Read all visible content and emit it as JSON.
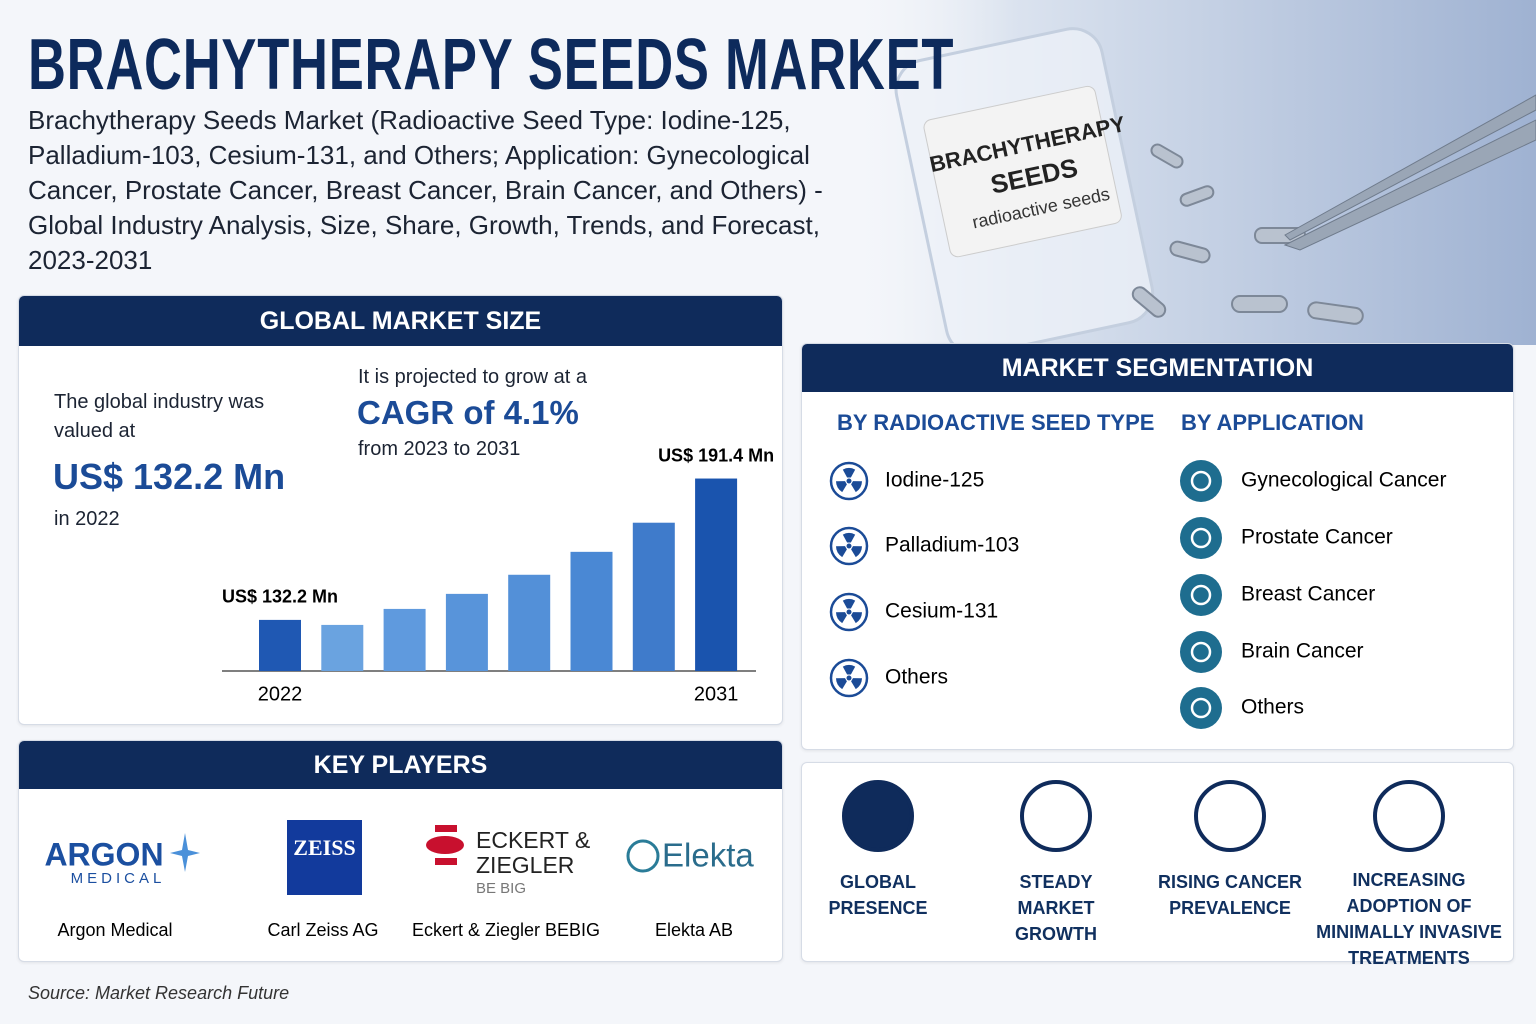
{
  "title": "BRACHYTHERAPY SEEDS MARKET",
  "subtitle": "Brachytherapy Seeds Market (Radioactive Seed Type: Iodine-125, Palladium-103, Cesium-131, and Others; Application: Gynecological Cancer, Prostate Cancer, Breast Cancer, Brain Cancer, and Others) - Global Industry Analysis, Size, Share, Growth, Trends, and Forecast, 2023-2031",
  "image_label": {
    "line1": "BRACHYTHERAPY",
    "line2": "SEEDS",
    "line3": "radioactive seeds"
  },
  "market_size": {
    "header": "GLOBAL MARKET SIZE",
    "valued_intro": "The global industry was valued at",
    "value": "US$ 132.2 Mn",
    "year": "in 2022",
    "cagr_intro": "It is projected to grow at a",
    "cagr": "CAGR of 4.1%",
    "cagr_period": "from 2023 to 2031"
  },
  "chart_data": {
    "type": "bar",
    "categories": [
      "2022",
      null,
      null,
      null,
      null,
      null,
      null,
      "2031"
    ],
    "values": [
      132.2,
      130.1,
      136.8,
      143.1,
      151.1,
      160.7,
      172.9,
      191.4
    ],
    "value_labels": [
      "US$ 132.2 Mn",
      null,
      null,
      null,
      null,
      null,
      null,
      "US$ 191.4 Mn"
    ],
    "colors": [
      "#1f58b3",
      "#6aa3e0",
      "#5f9ade",
      "#5894da",
      "#5390d8",
      "#4a88d4",
      "#3f7bcb",
      "#1a54ae"
    ],
    "ylim": [
      110.8,
      200
    ]
  },
  "key_players": {
    "header": "KEY PLAYERS",
    "players": [
      {
        "logo": [
          "ARGON",
          "MEDICAL"
        ],
        "name": "Argon Medical"
      },
      {
        "logo": [
          "ZEISS"
        ],
        "name": "Carl Zeiss AG"
      },
      {
        "logo": [
          "ECKERT &",
          "ZIEGLER",
          "BE BIG"
        ],
        "name": "Eckert & Ziegler BEBIG"
      },
      {
        "logo": [
          "Elekta"
        ],
        "name": "Elekta AB"
      }
    ]
  },
  "segmentation": {
    "header": "MARKET SEGMENTATION",
    "seed_type": {
      "heading": "BY RADIOACTIVE SEED TYPE",
      "items": [
        "Iodine-125",
        "Palladium-103",
        "Cesium-131",
        "Others"
      ]
    },
    "application": {
      "heading": "BY APPLICATION",
      "items": [
        "Gynecological Cancer",
        "Prostate Cancer",
        "Breast Cancer",
        "Brain Cancer",
        "Others"
      ]
    }
  },
  "drivers": [
    "GLOBAL PRESENCE",
    "STEADY MARKET GROWTH",
    "RISING CANCER PREVALENCE",
    "INCREASING ADOPTION OF MINIMALLY INVASIVE TREATMENTS"
  ],
  "source": "Source: Market Research Future"
}
